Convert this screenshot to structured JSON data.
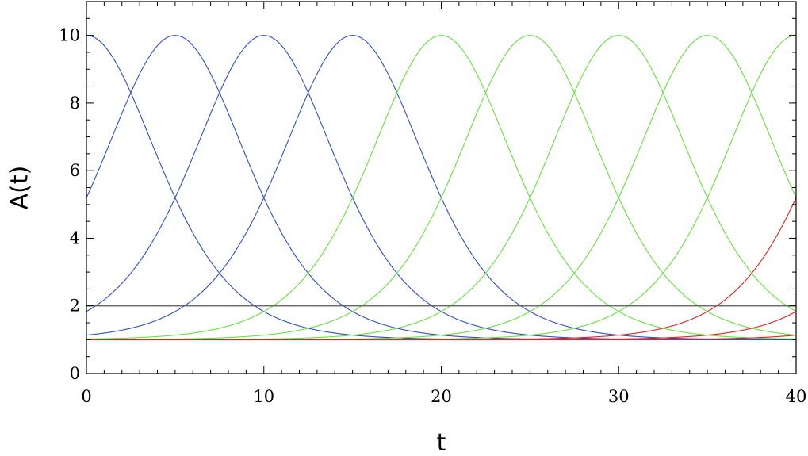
{
  "chart_data": {
    "type": "line",
    "xlabel": "t",
    "ylabel": "A(t)",
    "xlim": [
      0,
      40
    ],
    "ylim": [
      0,
      11
    ],
    "x_ticks": [
      0,
      10,
      20,
      30,
      40
    ],
    "y_ticks": [
      0,
      2,
      4,
      6,
      8,
      10
    ],
    "x_minor_step": 1,
    "y_minor_step": 0.5,
    "colors": {
      "blue": "#3050c0",
      "green": "#66e040",
      "red": "#e02020",
      "reference": "#555555"
    },
    "reference_line": {
      "y": 2,
      "color": "#555555"
    },
    "series": [
      {
        "peak_t": 0,
        "color": "#3050c0"
      },
      {
        "peak_t": 5,
        "color": "#3050c0"
      },
      {
        "peak_t": 10,
        "color": "#3050c0"
      },
      {
        "peak_t": 15,
        "color": "#3050c0"
      },
      {
        "peak_t": 20,
        "color": "#66e040"
      },
      {
        "peak_t": 25,
        "color": "#66e040"
      },
      {
        "peak_t": 30,
        "color": "#66e040"
      },
      {
        "peak_t": 35,
        "color": "#66e040"
      },
      {
        "peak_t": 40,
        "color": "#66e040"
      },
      {
        "peak_t": 45,
        "color": "#e02020"
      },
      {
        "peak_t": 50,
        "color": "#e02020"
      },
      {
        "peak_t": 55,
        "color": "#e02020"
      }
    ],
    "peak_value": 10,
    "baseline": 1,
    "half_width": 5,
    "value_at_half_width": 5.2
  }
}
